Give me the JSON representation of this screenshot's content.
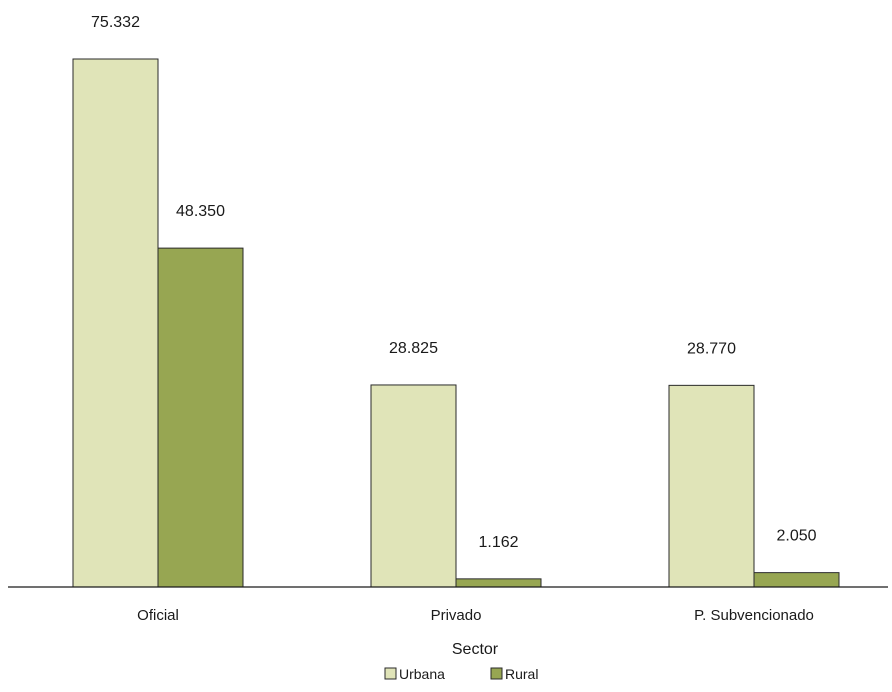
{
  "chart_data": {
    "type": "bar",
    "categories": [
      "Oficial",
      "Privado",
      "P. Subvencionado"
    ],
    "series": [
      {
        "name": "Urbana",
        "values": [
          75332,
          28825,
          28770
        ],
        "labels": [
          "75.332",
          "28.825",
          "28.770"
        ],
        "color": "#e0e4b8"
      },
      {
        "name": "Rural",
        "values": [
          48350,
          1162,
          2050
        ],
        "labels": [
          "48.350",
          "1.162",
          "2.050"
        ],
        "color": "#97a652"
      }
    ],
    "title": "",
    "xlabel": "Sector",
    "ylabel": "",
    "ylim": [
      0,
      80000
    ],
    "grid": false,
    "legend_position": "bottom"
  }
}
